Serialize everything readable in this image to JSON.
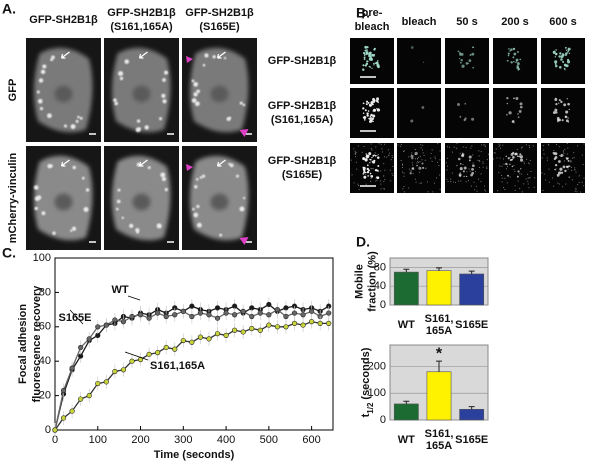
{
  "panel_a": {
    "label": "A.",
    "columns": [
      "GFP-SH2B1β",
      "GFP-SH2B1β\n(S161,165A)",
      "GFP-SH2B1β\n(S165E)"
    ],
    "rows": [
      "GFP",
      "mCherry-vinculin"
    ]
  },
  "panel_b": {
    "label": "B.",
    "columns": [
      "pre-\nbleach",
      "bleach",
      "50 s",
      "200 s",
      "600 s"
    ],
    "rows": [
      "GFP-SH2B1β",
      "GFP-SH2B1β\n(S161,165A)",
      "GFP-SH2B1β\n(S165E)"
    ]
  },
  "panel_c": {
    "label": "C."
  },
  "panel_d": {
    "label": "D."
  },
  "chart_data": [
    {
      "type": "line",
      "xlabel": "Time (seconds)",
      "ylabel": "Focal adhesion\nfluorescence recovery",
      "x": [
        0,
        20,
        40,
        60,
        80,
        100,
        120,
        140,
        160,
        180,
        200,
        220,
        240,
        260,
        280,
        300,
        320,
        340,
        360,
        380,
        400,
        420,
        440,
        460,
        480,
        500,
        520,
        540,
        560,
        580,
        600,
        620,
        640
      ],
      "xlim": [
        0,
        650
      ],
      "xticks": [
        0,
        100,
        200,
        300,
        400,
        500,
        600
      ],
      "ylim": [
        0,
        100
      ],
      "yticks": [
        0,
        20,
        40,
        60,
        80,
        100
      ],
      "series": [
        {
          "name": "WT",
          "color": "#1a1a1a",
          "values": [
            0,
            21,
            35,
            43,
            52,
            55,
            61,
            62,
            66,
            65,
            68,
            67,
            70,
            68,
            71,
            69,
            72,
            70,
            69,
            71,
            70,
            72,
            68,
            71,
            70,
            73,
            69,
            71,
            72,
            70,
            71,
            69,
            72
          ]
        },
        {
          "name": "S165E",
          "color": "#666666",
          "values": [
            0,
            23,
            36,
            48,
            53,
            60,
            61,
            64,
            63,
            66,
            67,
            65,
            68,
            66,
            67,
            69,
            66,
            68,
            67,
            65,
            68,
            67,
            69,
            66,
            68,
            67,
            70,
            66,
            68,
            67,
            69,
            66,
            68
          ]
        },
        {
          "name": "S161,165A",
          "color": "#c9d43a",
          "values": [
            0,
            7,
            11,
            18,
            20,
            27,
            28,
            34,
            35,
            40,
            41,
            44,
            45,
            48,
            47,
            52,
            51,
            54,
            53,
            56,
            55,
            58,
            57,
            59,
            58,
            61,
            60,
            60,
            62,
            61,
            63,
            62,
            62
          ]
        }
      ]
    },
    {
      "type": "bar",
      "ylabel": "Mobile\nfraction (%)",
      "categories": [
        "WT",
        "S161,\n165A",
        "S165E"
      ],
      "values": [
        70,
        73,
        66
      ],
      "errors": [
        6,
        6,
        6
      ],
      "colors": [
        "#1b6b32",
        "#fff200",
        "#2b3f9c"
      ],
      "ylim": [
        0,
        100
      ],
      "yticks": [
        0,
        40,
        80
      ],
      "grid": true
    },
    {
      "type": "bar",
      "ylabel": {
        "symbol": "t",
        "subscript": "1/2",
        "unit": "(seconds)"
      },
      "categories": [
        "WT",
        "S161,\n165A",
        "S165E"
      ],
      "values": [
        60,
        180,
        40
      ],
      "errors": [
        10,
        40,
        10
      ],
      "colors": [
        "#1b6b32",
        "#fff200",
        "#2b3f9c"
      ],
      "ylim": [
        0,
        280
      ],
      "yticks": [
        0,
        100,
        200
      ],
      "grid": true,
      "annotation": "*"
    }
  ]
}
